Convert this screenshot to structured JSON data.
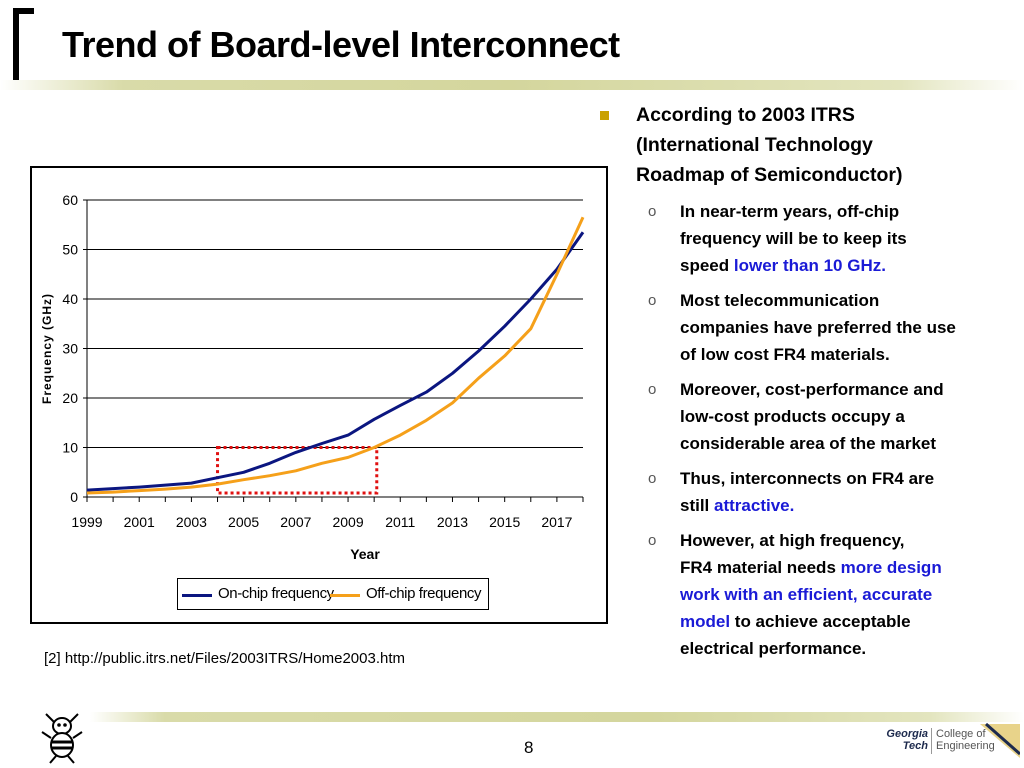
{
  "slide": {
    "title": "Trend of Board-level Interconnect",
    "source": "[2] http://public.itrs.net/Files/2003ITRS/Home2003.htm",
    "page_number": "8",
    "logo": {
      "left_line1": "Georgia",
      "left_line2": "Tech",
      "right_line1": "College of",
      "right_line2": "Engineering"
    }
  },
  "bullets": {
    "main": {
      "line1": "According to 2003 ITRS",
      "line2": "(International Technology",
      "line3": "Roadmap of Semiconductor)"
    },
    "subs": [
      {
        "mark": "o",
        "lines": [
          "In near-term years, off-chip",
          "frequency will be to keep its"
        ],
        "line3_plain": "speed ",
        "line3_highlight": "lower than 10 GHz."
      },
      {
        "mark": "o",
        "lines": [
          "Most telecommunication",
          "companies have preferred the use",
          "of low cost FR4 materials."
        ]
      },
      {
        "mark": "o",
        "lines": [
          "Moreover, cost-performance and",
          "low-cost products occupy a",
          "considerable area of the market"
        ]
      },
      {
        "mark": "o",
        "line1": "Thus, interconnects on FR4 are",
        "line2_plain": "still ",
        "line2_highlight": "attractive."
      },
      {
        "mark": "o",
        "line1": "However, at high frequency,",
        "line2_plain": "FR4 material needs ",
        "line2_highlight": "more design",
        "line3_highlight": "work with an efficient, accurate",
        "line4_highlight": "model",
        "line4_plain": " to achieve acceptable",
        "line5": "electrical performance."
      }
    ]
  },
  "chart_data": {
    "type": "line",
    "title": "",
    "xlabel": "Year",
    "ylabel": "Frequency (GHz)",
    "xlim": [
      1999,
      2018
    ],
    "ylim": [
      0,
      60
    ],
    "x_ticks": [
      "1999",
      "2001",
      "2003",
      "2005",
      "2007",
      "2009",
      "2011",
      "2013",
      "2015",
      "2017"
    ],
    "y_ticks": [
      "0",
      "10",
      "20",
      "30",
      "40",
      "50",
      "60"
    ],
    "grid": "horizontal",
    "legend_position": "bottom",
    "x": [
      1999,
      2000,
      2001,
      2002,
      2003,
      2004,
      2005,
      2006,
      2007,
      2008,
      2009,
      2010,
      2011,
      2012,
      2013,
      2014,
      2015,
      2016,
      2017,
      2018
    ],
    "series": [
      {
        "name": "On-chip frequency",
        "color": "#0b1680",
        "values": [
          1.4,
          1.7,
          2.0,
          2.4,
          2.8,
          3.9,
          5.0,
          6.8,
          9.0,
          10.8,
          12.5,
          15.7,
          18.5,
          21.2,
          25.0,
          29.5,
          34.5,
          40.0,
          46.0,
          53.5
        ]
      },
      {
        "name": "Off-chip frequency",
        "color": "#f5a01a",
        "values": [
          0.8,
          1.0,
          1.3,
          1.6,
          2.0,
          2.6,
          3.5,
          4.3,
          5.3,
          6.8,
          8.0,
          10.0,
          12.5,
          15.5,
          19.0,
          24.0,
          28.5,
          34.0,
          45.0,
          56.5
        ]
      }
    ],
    "annotation": "dotted-red-rectangle around 2004-2010, 1-10 GHz"
  }
}
